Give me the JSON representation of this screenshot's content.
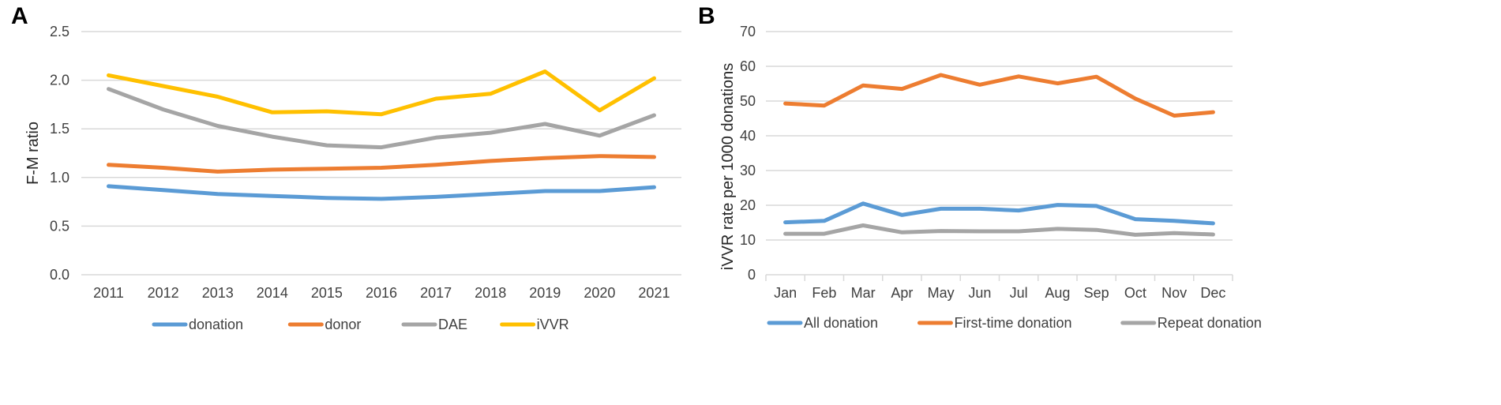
{
  "chart_data": [
    {
      "panel_label": "A",
      "type": "line",
      "title": "",
      "xlabel": "",
      "ylabel": "F-M ratio",
      "categories": [
        "2011",
        "2012",
        "2013",
        "2014",
        "2015",
        "2016",
        "2017",
        "2018",
        "2019",
        "2020",
        "2021"
      ],
      "ylim": [
        0,
        2.5
      ],
      "yticks": [
        "0.0",
        "0.5",
        "1.0",
        "1.5",
        "2.0",
        "2.5"
      ],
      "grid": true,
      "legend_position": "bottom",
      "series": [
        {
          "name": "donation",
          "color": "#5b9bd5",
          "values": [
            0.91,
            0.87,
            0.83,
            0.81,
            0.79,
            0.78,
            0.8,
            0.83,
            0.86,
            0.86,
            0.9
          ]
        },
        {
          "name": "donor",
          "color": "#ed7d31",
          "values": [
            1.13,
            1.1,
            1.06,
            1.08,
            1.09,
            1.1,
            1.13,
            1.17,
            1.2,
            1.22,
            1.21
          ]
        },
        {
          "name": "DAE",
          "color": "#a5a5a5",
          "values": [
            1.91,
            1.7,
            1.53,
            1.42,
            1.33,
            1.31,
            1.41,
            1.46,
            1.55,
            1.43,
            1.64
          ]
        },
        {
          "name": "iVVR",
          "color": "#ffc000",
          "values": [
            2.05,
            1.94,
            1.83,
            1.67,
            1.68,
            1.65,
            1.81,
            1.86,
            2.09,
            1.69,
            2.02
          ]
        }
      ]
    },
    {
      "panel_label": "B",
      "type": "line",
      "title": "",
      "xlabel": "",
      "ylabel": "iVVR rate per 1000 donations",
      "categories": [
        "Jan",
        "Feb",
        "Mar",
        "Apr",
        "May",
        "Jun",
        "Jul",
        "Aug",
        "Sep",
        "Oct",
        "Nov",
        "Dec"
      ],
      "ylim": [
        0,
        70
      ],
      "yticks": [
        "0",
        "10",
        "20",
        "30",
        "40",
        "50",
        "60",
        "70"
      ],
      "grid": true,
      "legend_position": "bottom",
      "series": [
        {
          "name": "All donation",
          "color": "#5b9bd5",
          "values": [
            15.1,
            15.5,
            20.5,
            17.2,
            19.0,
            19.0,
            18.5,
            20.1,
            19.8,
            16.0,
            15.5,
            14.8
          ]
        },
        {
          "name": "First-time donation",
          "color": "#ed7d31",
          "values": [
            49.3,
            48.7,
            54.5,
            53.5,
            57.5,
            54.7,
            57.1,
            55.1,
            57.0,
            50.7,
            45.8,
            46.8
          ]
        },
        {
          "name": "Repeat donation",
          "color": "#a5a5a5",
          "values": [
            11.8,
            11.8,
            14.2,
            12.2,
            12.6,
            12.5,
            12.5,
            13.2,
            12.9,
            11.5,
            12.0,
            11.6
          ]
        }
      ]
    }
  ]
}
